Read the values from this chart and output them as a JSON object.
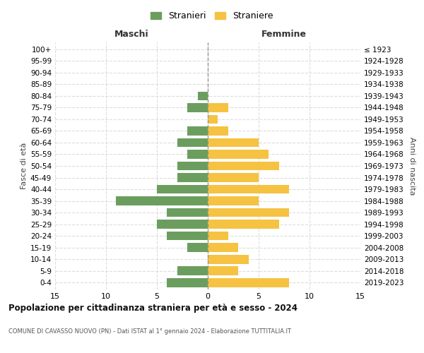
{
  "age_groups": [
    "0-4",
    "5-9",
    "10-14",
    "15-19",
    "20-24",
    "25-29",
    "30-34",
    "35-39",
    "40-44",
    "45-49",
    "50-54",
    "55-59",
    "60-64",
    "65-69",
    "70-74",
    "75-79",
    "80-84",
    "85-89",
    "90-94",
    "95-99",
    "100+"
  ],
  "birth_years": [
    "2019-2023",
    "2014-2018",
    "2009-2013",
    "2004-2008",
    "1999-2003",
    "1994-1998",
    "1989-1993",
    "1984-1988",
    "1979-1983",
    "1974-1978",
    "1969-1973",
    "1964-1968",
    "1959-1963",
    "1954-1958",
    "1949-1953",
    "1944-1948",
    "1939-1943",
    "1934-1938",
    "1929-1933",
    "1924-1928",
    "≤ 1923"
  ],
  "maschi": [
    4,
    3,
    0,
    2,
    4,
    5,
    4,
    9,
    5,
    3,
    3,
    2,
    3,
    2,
    0,
    2,
    1,
    0,
    0,
    0,
    0
  ],
  "femmine": [
    8,
    3,
    4,
    3,
    2,
    7,
    8,
    5,
    8,
    5,
    7,
    6,
    5,
    2,
    1,
    2,
    0,
    0,
    0,
    0,
    0
  ],
  "maschi_color": "#6b9e5e",
  "femmine_color": "#f5c242",
  "center_line_color": "#999988",
  "grid_color": "#dddddd",
  "title": "Popolazione per cittadinanza straniera per età e sesso - 2024",
  "subtitle": "COMUNE DI CAVASSO NUOVO (PN) - Dati ISTAT al 1° gennaio 2024 - Elaborazione TUTTITALIA.IT",
  "legend_maschi": "Stranieri",
  "legend_femmine": "Straniere",
  "header_left": "Maschi",
  "header_right": "Femmine",
  "ylabel_left": "Fasce di età",
  "ylabel_right": "Anni di nascita",
  "xlim": 15,
  "background_color": "#ffffff"
}
